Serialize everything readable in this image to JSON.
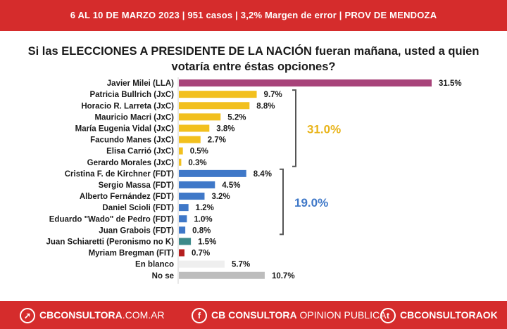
{
  "header": {
    "text": "6 AL 10 DE MARZO 2023 | 951 casos  |  3,2% Margen de error  | PROV DE MENDOZA"
  },
  "title": {
    "line1": "Si las ELECCIONES A PRESIDENTE DE LA NACIÓN fueran mañana, usted a quien",
    "line2": "votaría entre éstas opciones?"
  },
  "colors": {
    "LLA": "#a8437a",
    "JxC": "#f2c01e",
    "FDT": "#3f78c8",
    "Peronismo no K": "#3d8a8a",
    "FIT": "#b51f1f",
    "blanco": "#efefef",
    "nose": "#bdbdbd",
    "jxc_total": "#e9b51d",
    "fdt_total": "#3f78c8",
    "bracket": "#555555",
    "brand_red": "#d52c2c"
  },
  "chart_data": {
    "type": "bar",
    "orientation": "horizontal",
    "categories": [
      "Javier Milei (LLA)",
      "Patricia Bullrich (JxC)",
      "Horacio R. Larreta (JxC)",
      "Mauricio Macri (JxC)",
      "María Eugenia Vidal (JxC)",
      "Facundo Manes (JxC)",
      "Elisa Carrió (JxC)",
      "Gerardo Morales (JxC)",
      "Cristina F. de Kirchner (FDT)",
      "Sergio Massa (FDT)",
      "Alberto Fernández (FDT)",
      "Daniel Scioli (FDT)",
      "Eduardo \"Wado\" de Pedro (FDT)",
      "Juan Grabois (FDT)",
      "Juan Schiaretti (Peronismo no K)",
      "Myriam Bregman (FIT)",
      "En blanco",
      "No se"
    ],
    "values": [
      31.5,
      9.7,
      8.8,
      5.2,
      3.8,
      2.7,
      0.5,
      0.3,
      8.4,
      4.5,
      3.2,
      1.2,
      1.0,
      0.8,
      1.5,
      0.7,
      5.7,
      10.7
    ],
    "value_labels": [
      "31.5%",
      "9.7%",
      "8.8%",
      "5.2%",
      "3.8%",
      "2.7%",
      "0.5%",
      "0.3%",
      "8.4%",
      "4.5%",
      "3.2%",
      "1.2%",
      "1.0%",
      "0.8%",
      "1.5%",
      "0.7%",
      "5.7%",
      "10.7%"
    ],
    "groups": [
      "LLA",
      "JxC",
      "JxC",
      "JxC",
      "JxC",
      "JxC",
      "JxC",
      "JxC",
      "FDT",
      "FDT",
      "FDT",
      "FDT",
      "FDT",
      "FDT",
      "Peronismo no K",
      "FIT",
      "blanco",
      "nose"
    ],
    "group_totals": [
      {
        "group": "JxC",
        "label": "31.0%",
        "from": 1,
        "to": 7
      },
      {
        "group": "FDT",
        "label": "19.0%",
        "from": 8,
        "to": 13
      }
    ],
    "xlim": [
      0,
      31.5
    ],
    "grid": false,
    "legend": "none"
  },
  "footer": {
    "web_strong": "CBCONSULTORA",
    "web_light": ".COM.AR",
    "fb_strong": "CB CONSULTORA",
    "fb_light": " OPINION PUBLICA",
    "tw_strong": "CBCONSULTORAOK"
  }
}
